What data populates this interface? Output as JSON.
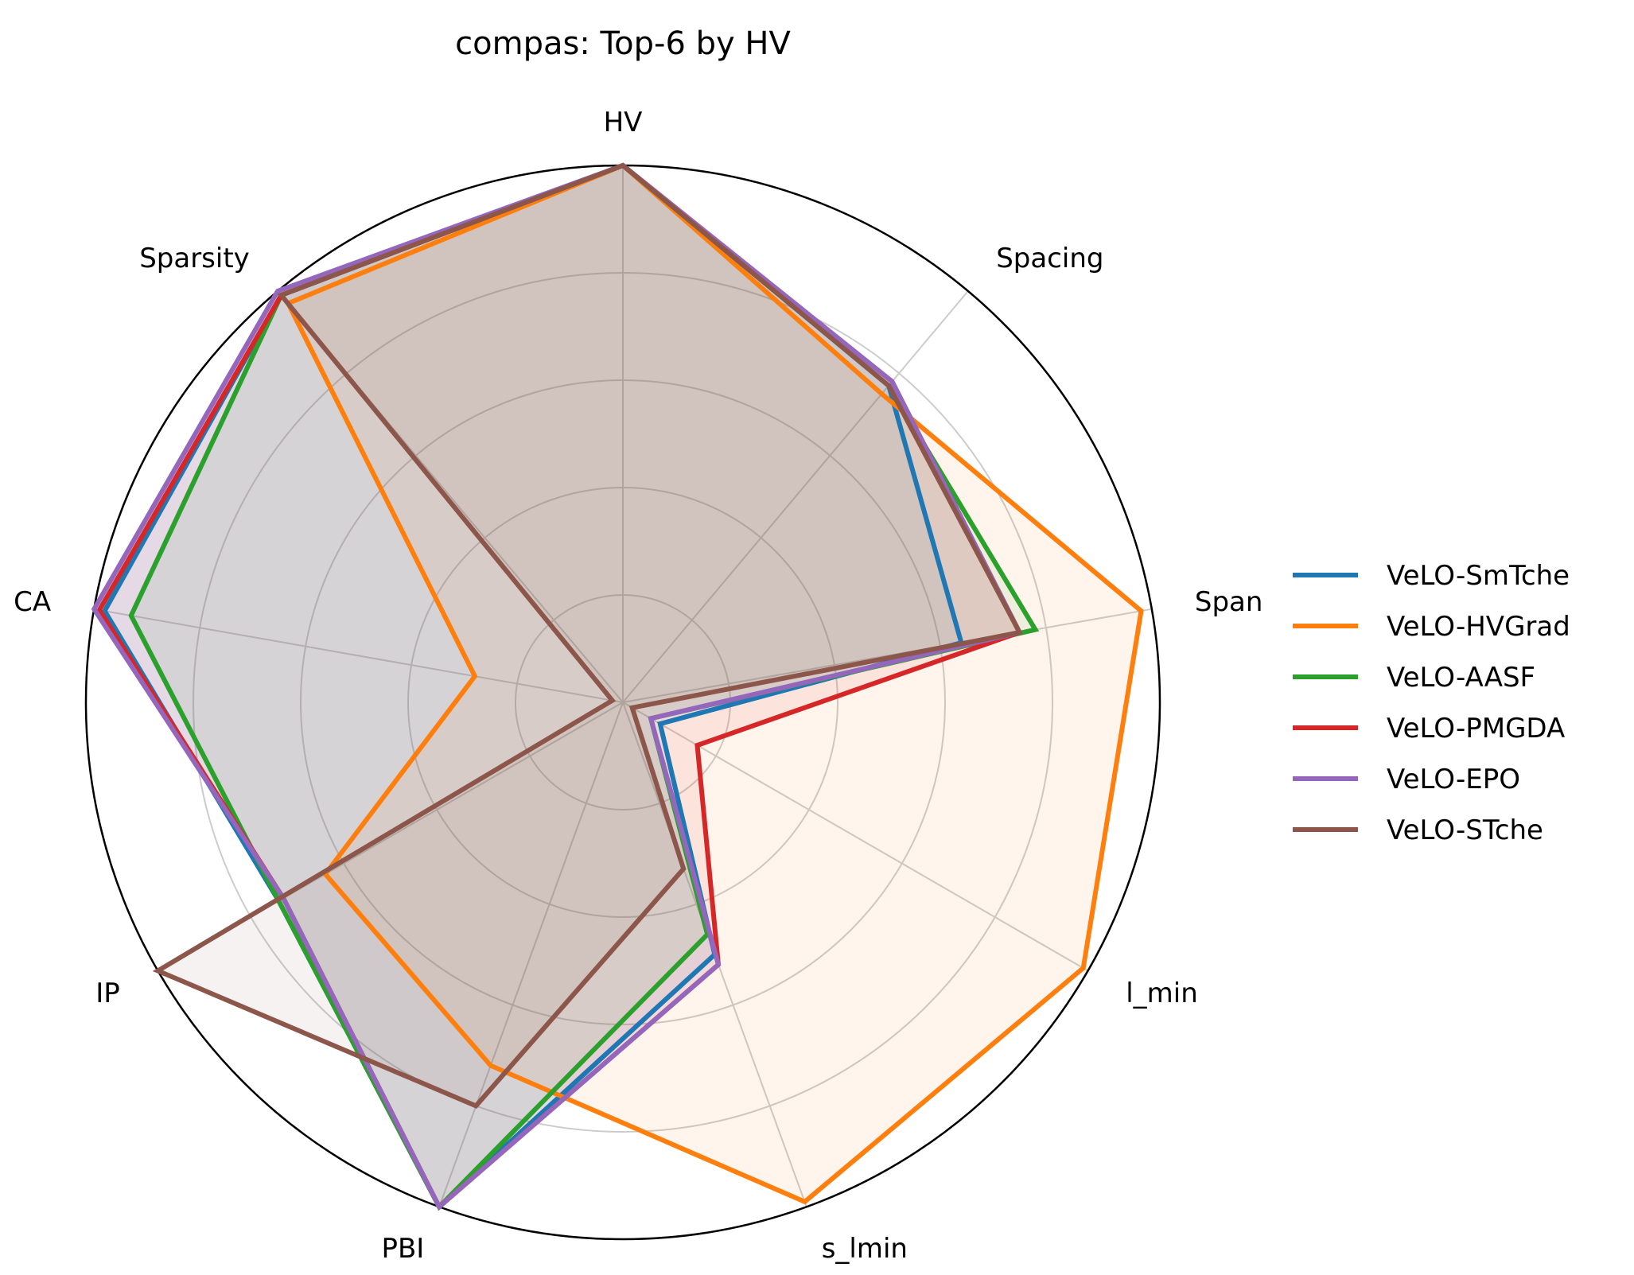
{
  "chart_data": {
    "type": "radar",
    "title": "compas: Top-6 by HV",
    "axes": [
      "HV",
      "Spacing",
      "Span",
      "l_min",
      "s_lmin",
      "PBI",
      "IP",
      "CA",
      "Sparsity"
    ],
    "rlim": [
      0,
      1
    ],
    "grid": true,
    "gridlines": [
      0.2,
      0.4,
      0.6,
      0.8
    ],
    "legend_position": "right",
    "series": [
      {
        "name": "VeLO-SmTche",
        "color": "#1f77b4",
        "values": [
          1.0,
          0.77,
          0.64,
          0.08,
          0.5,
          1.0,
          0.74,
          0.98,
          0.99
        ]
      },
      {
        "name": "VeLO-HVGrad",
        "color": "#ff7f0e",
        "values": [
          1.0,
          0.75,
          0.98,
          0.99,
          0.99,
          0.72,
          0.64,
          0.28,
          0.97
        ]
      },
      {
        "name": "VeLO-AASF",
        "color": "#2ca02c",
        "values": [
          1.0,
          0.77,
          0.78,
          0.06,
          0.46,
          1.0,
          0.74,
          0.93,
          0.99
        ]
      },
      {
        "name": "VeLO-PMGDA",
        "color": "#d62728",
        "values": [
          1.0,
          0.78,
          0.75,
          0.16,
          0.52,
          1.0,
          0.73,
          0.99,
          0.99
        ]
      },
      {
        "name": "VeLO-EPO",
        "color": "#9467bd",
        "values": [
          1.0,
          0.78,
          0.75,
          0.06,
          0.52,
          1.0,
          0.73,
          1.0,
          1.0
        ]
      },
      {
        "name": "VeLO-STche",
        "color": "#8c564b",
        "values": [
          1.0,
          0.77,
          0.75,
          0.02,
          0.33,
          0.8,
          1.0,
          0.02,
          0.99
        ]
      }
    ]
  }
}
